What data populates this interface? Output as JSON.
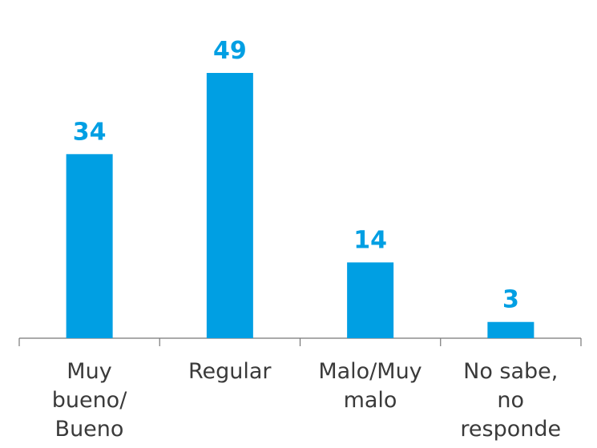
{
  "chart_data": {
    "type": "bar",
    "categories": [
      "Muy\nbueno/\nBueno",
      "Regular",
      "Malo/Muy\nmalo",
      "No sabe,\nno\nresponde"
    ],
    "values": [
      34,
      49,
      14,
      3
    ],
    "color": "#009fe3"
  }
}
